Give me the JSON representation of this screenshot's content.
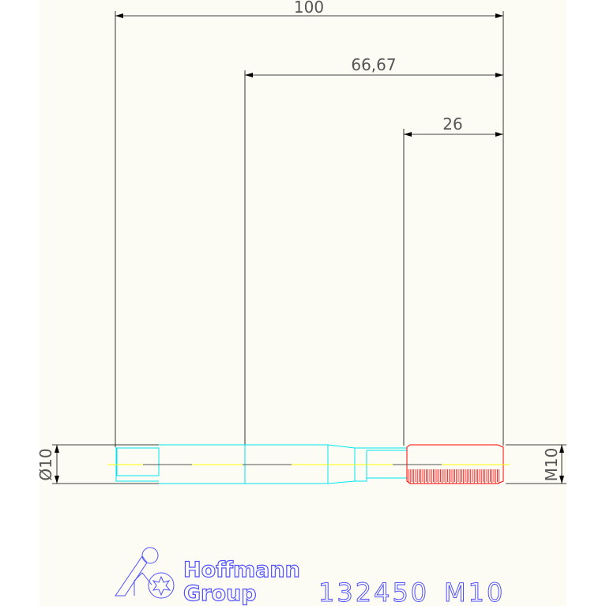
{
  "drawing": {
    "dimensions": {
      "overall_length": "100",
      "shank_to_end": "66,67",
      "thread_length": "26",
      "shank_diameter": "Ø10",
      "thread_size": "M10"
    },
    "title_block": {
      "article_number": "132450",
      "size": "M10",
      "brand_line1": "Hoffmann",
      "brand_line2": "Group"
    },
    "colors": {
      "background": "#fcfcf5",
      "dimension_lines": "#000000",
      "tool_body": "#00e5ee",
      "thread": "#ff0000",
      "centerline": "#ffff00",
      "title_text": "#5050ff"
    }
  }
}
